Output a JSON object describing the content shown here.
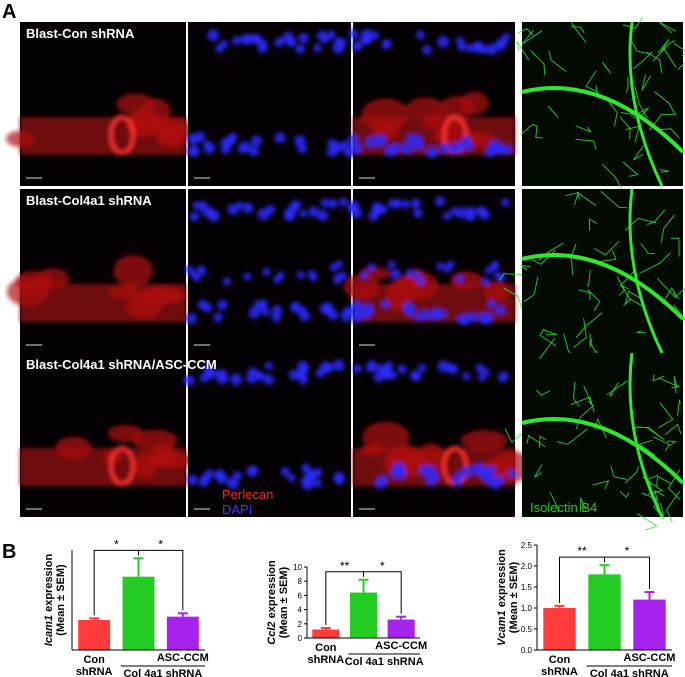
{
  "panel_labels": [
    "A",
    "B"
  ],
  "rows": [
    {
      "label": "Blast-Con shRNA"
    },
    {
      "label": "Blast-Col4a1 shRNA"
    },
    {
      "label": "Blast-Col4a1 shRNA/ASC-CCM"
    }
  ],
  "stains": {
    "red": "Perlecan",
    "blue": "DAPI",
    "green": "Isolectin B4"
  },
  "chart_data": [
    {
      "type": "bar",
      "gene": "Icam1",
      "ylabel": " expression",
      "ylabel2": "(Mean ± SEM)",
      "categories": [
        "Con shRNA",
        null,
        "ASC-CCM"
      ],
      "group_label": "Col 4a1 shRNA",
      "values": [
        0.9,
        2.2,
        1.0
      ],
      "errors": [
        0.05,
        0.55,
        0.1
      ],
      "colors": [
        "#ff3b3b",
        "#22cc22",
        "#a822ee"
      ],
      "ylim": [
        0,
        3
      ],
      "significance": [
        "*",
        "*"
      ]
    },
    {
      "type": "bar",
      "gene": "Ccl2",
      "ylabel": " expression",
      "ylabel2": "(Mean ± SEM)",
      "categories": [
        "Con shRNA",
        null,
        "ASC-CCM"
      ],
      "group_label": "Col 4a1 shRNA",
      "values": [
        1.2,
        6.4,
        2.6
      ],
      "errors": [
        0.2,
        1.8,
        0.4
      ],
      "colors": [
        "#ff3b3b",
        "#22cc22",
        "#a822ee"
      ],
      "ylim": [
        0,
        10
      ],
      "yticks": [
        0,
        2,
        4,
        6,
        8,
        10
      ],
      "significance": [
        "**",
        "*"
      ]
    },
    {
      "type": "bar",
      "gene": "Vcam1",
      "ylabel": " expression",
      "ylabel2": "(Mean ± SEM)",
      "categories": [
        "Con shRNA",
        null,
        "ASC-CCM"
      ],
      "group_label": "Col 4a1 shRNA",
      "values": [
        1.0,
        1.8,
        1.2
      ],
      "errors": [
        0.05,
        0.22,
        0.18
      ],
      "colors": [
        "#ff3b3b",
        "#22cc22",
        "#a822ee"
      ],
      "ylim": [
        0,
        2.5
      ],
      "yticks": [
        {
          "value": 0,
          "label": "0.0"
        },
        {
          "value": 0.5,
          "label": "0.5"
        },
        {
          "value": 1,
          "label": "1.0"
        },
        {
          "value": 1.5,
          "label": "1.5"
        },
        {
          "value": 2,
          "label": "2.0"
        },
        {
          "value": 2.5,
          "label": "2.5"
        }
      ],
      "significance": [
        "**",
        "*"
      ]
    }
  ]
}
